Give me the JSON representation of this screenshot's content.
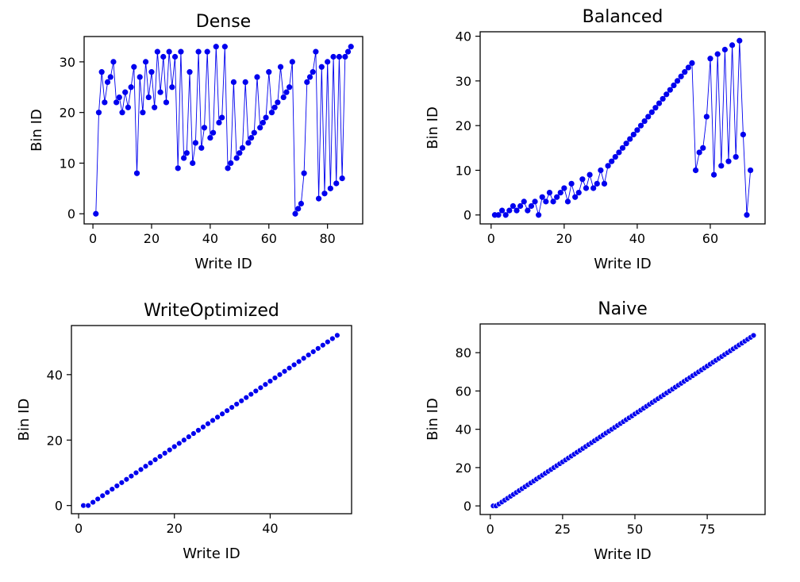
{
  "chart_data": [
    {
      "type": "line",
      "title": "Dense",
      "xlabel": "Write ID",
      "ylabel": "Bin ID",
      "xlim": [
        -3,
        92
      ],
      "ylim": [
        -2,
        35
      ],
      "xticks": [
        0,
        20,
        40,
        60,
        80
      ],
      "yticks": [
        0,
        10,
        20,
        30
      ],
      "line": true,
      "color": "#0000ee",
      "x": [
        1,
        2,
        3,
        4,
        5,
        6,
        7,
        8,
        9,
        10,
        11,
        12,
        13,
        14,
        15,
        16,
        17,
        18,
        19,
        20,
        21,
        22,
        23,
        24,
        25,
        26,
        27,
        28,
        29,
        30,
        31,
        32,
        33,
        34,
        35,
        36,
        37,
        38,
        39,
        40,
        41,
        42,
        43,
        44,
        45,
        46,
        47,
        48,
        49,
        50,
        51,
        52,
        53,
        54,
        55,
        56,
        57,
        58,
        59,
        60,
        61,
        62,
        63,
        64,
        65,
        66,
        67,
        68,
        69,
        70,
        71,
        72,
        73,
        74,
        75,
        76,
        77,
        78,
        79,
        80,
        81,
        82,
        83,
        84,
        85,
        86,
        87,
        88
      ],
      "y": [
        0,
        20,
        28,
        22,
        26,
        27,
        30,
        22,
        23,
        20,
        24,
        21,
        25,
        29,
        8,
        27,
        20,
        30,
        23,
        28,
        21,
        32,
        24,
        31,
        22,
        32,
        25,
        31,
        9,
        32,
        11,
        12,
        28,
        10,
        14,
        32,
        13,
        17,
        32,
        15,
        16,
        33,
        18,
        19,
        33,
        9,
        10,
        26,
        11,
        12,
        13,
        26,
        14,
        15,
        16,
        27,
        17,
        18,
        19,
        28,
        20,
        21,
        22,
        29,
        23,
        24,
        25,
        30,
        0,
        1,
        2,
        8,
        26,
        27,
        28,
        32,
        3,
        29,
        4,
        30,
        5,
        31,
        6,
        31,
        7,
        31,
        32,
        33
      ]
    },
    {
      "type": "line",
      "title": "Balanced",
      "xlabel": "Write ID",
      "ylabel": "Bin ID",
      "xlim": [
        -3,
        75
      ],
      "ylim": [
        -2,
        41
      ],
      "xticks": [
        0,
        20,
        40,
        60
      ],
      "yticks": [
        0,
        10,
        20,
        30,
        40
      ],
      "line": true,
      "color": "#0000ee",
      "x": [
        1,
        2,
        3,
        4,
        5,
        6,
        7,
        8,
        9,
        10,
        11,
        12,
        13,
        14,
        15,
        16,
        17,
        18,
        19,
        20,
        21,
        22,
        23,
        24,
        25,
        26,
        27,
        28,
        29,
        30,
        31,
        32,
        33,
        34,
        35,
        36,
        37,
        38,
        39,
        40,
        41,
        42,
        43,
        44,
        45,
        46,
        47,
        48,
        49,
        50,
        51,
        52,
        53,
        54,
        55,
        56,
        57,
        58,
        59,
        60,
        61,
        62,
        63,
        64,
        65,
        66,
        67,
        68,
        69,
        70,
        71
      ],
      "y": [
        0,
        0,
        1,
        0,
        1,
        2,
        1,
        2,
        3,
        1,
        2,
        3,
        0,
        4,
        3,
        5,
        3,
        4,
        5,
        6,
        3,
        7,
        4,
        5,
        8,
        6,
        9,
        6,
        7,
        10,
        7,
        11,
        12,
        13,
        14,
        15,
        16,
        17,
        18,
        19,
        20,
        21,
        22,
        23,
        24,
        25,
        26,
        27,
        28,
        29,
        30,
        31,
        32,
        33,
        34,
        10,
        14,
        15,
        22,
        35,
        9,
        36,
        11,
        37,
        12,
        38,
        13,
        39,
        18,
        0,
        10
      ]
    },
    {
      "type": "scatter",
      "title": "WriteOptimized",
      "xlabel": "Write ID",
      "ylabel": "Bin ID",
      "xlim": [
        -1.5,
        57
      ],
      "ylim": [
        -2.5,
        55
      ],
      "xticks": [
        0,
        20,
        40
      ],
      "yticks": [
        0,
        20,
        40
      ],
      "line": false,
      "color": "#0000ee",
      "x": [
        1,
        2,
        3,
        4,
        5,
        6,
        7,
        8,
        9,
        10,
        11,
        12,
        13,
        14,
        15,
        16,
        17,
        18,
        19,
        20,
        21,
        22,
        23,
        24,
        25,
        26,
        27,
        28,
        29,
        30,
        31,
        32,
        33,
        34,
        35,
        36,
        37,
        38,
        39,
        40,
        41,
        42,
        43,
        44,
        45,
        46,
        47,
        48,
        49,
        50,
        51,
        52,
        53,
        54
      ],
      "y": [
        0,
        0,
        1,
        2,
        3,
        4,
        5,
        6,
        7,
        8,
        9,
        10,
        11,
        12,
        13,
        14,
        15,
        16,
        17,
        18,
        19,
        20,
        21,
        22,
        23,
        24,
        25,
        26,
        27,
        28,
        29,
        30,
        31,
        32,
        33,
        34,
        35,
        36,
        37,
        38,
        39,
        40,
        41,
        42,
        43,
        44,
        45,
        46,
        47,
        48,
        49,
        50,
        51,
        52
      ]
    },
    {
      "type": "scatter",
      "title": "Naive",
      "xlabel": "Write ID",
      "ylabel": "Bin ID",
      "xlim": [
        -3.5,
        95
      ],
      "ylim": [
        -4.5,
        95
      ],
      "xticks": [
        0,
        25,
        50,
        75
      ],
      "yticks": [
        0,
        20,
        40,
        60,
        80
      ],
      "line": false,
      "color": "#0000ee",
      "x": [
        1,
        2,
        3,
        4,
        5,
        6,
        7,
        8,
        9,
        10,
        11,
        12,
        13,
        14,
        15,
        16,
        17,
        18,
        19,
        20,
        21,
        22,
        23,
        24,
        25,
        26,
        27,
        28,
        29,
        30,
        31,
        32,
        33,
        34,
        35,
        36,
        37,
        38,
        39,
        40,
        41,
        42,
        43,
        44,
        45,
        46,
        47,
        48,
        49,
        50,
        51,
        52,
        53,
        54,
        55,
        56,
        57,
        58,
        59,
        60,
        61,
        62,
        63,
        64,
        65,
        66,
        67,
        68,
        69,
        70,
        71,
        72,
        73,
        74,
        75,
        76,
        77,
        78,
        79,
        80,
        81,
        82,
        83,
        84,
        85,
        86,
        87,
        88,
        89,
        90,
        91
      ],
      "y": [
        0,
        0,
        1,
        2,
        3,
        4,
        5,
        6,
        7,
        8,
        9,
        10,
        11,
        12,
        13,
        14,
        15,
        16,
        17,
        18,
        19,
        20,
        21,
        22,
        23,
        24,
        25,
        26,
        27,
        28,
        29,
        30,
        31,
        32,
        33,
        34,
        35,
        36,
        37,
        38,
        39,
        40,
        41,
        42,
        43,
        44,
        45,
        46,
        47,
        48,
        49,
        50,
        51,
        52,
        53,
        54,
        55,
        56,
        57,
        58,
        59,
        60,
        61,
        62,
        63,
        64,
        65,
        66,
        67,
        68,
        69,
        70,
        71,
        72,
        73,
        74,
        75,
        76,
        77,
        78,
        79,
        80,
        81,
        82,
        83,
        84,
        85,
        86,
        87,
        88,
        89
      ]
    }
  ]
}
